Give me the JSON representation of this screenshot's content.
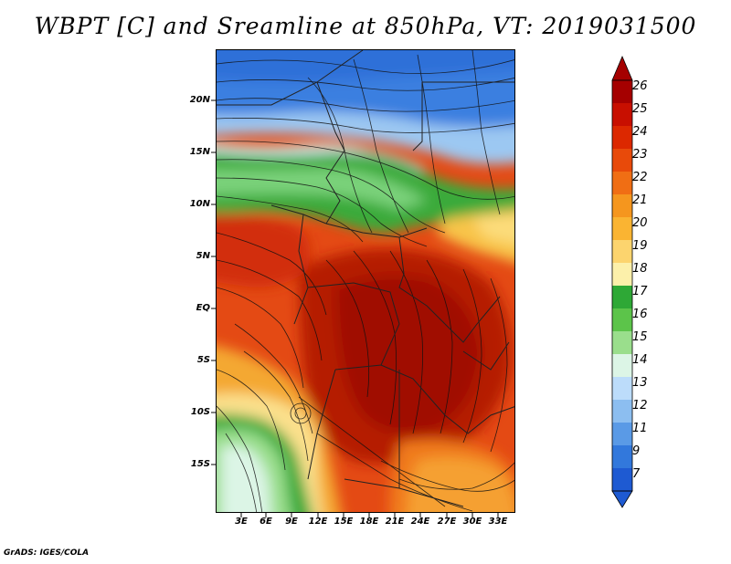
{
  "title": "WBPT [C] and Sreamline at 850hPa, VT: 2019031500",
  "credit": "GrADS: IGES/COLA",
  "map": {
    "variable": "Wet-bulb potential temperature and streamlines",
    "level": "850hPa",
    "valid_time": "2019031500",
    "lat_labels": [
      "20N",
      "15N",
      "10N",
      "5N",
      "EQ",
      "5S",
      "10S",
      "15S"
    ],
    "lat_values": [
      20,
      15,
      10,
      5,
      0,
      -5,
      -10,
      -15
    ],
    "lon_labels": [
      "3E",
      "6E",
      "9E",
      "12E",
      "15E",
      "18E",
      "21E",
      "24E",
      "27E",
      "30E",
      "33E"
    ],
    "lon_values": [
      3,
      6,
      9,
      12,
      15,
      18,
      21,
      24,
      27,
      30,
      33
    ]
  },
  "colorbar": {
    "labels": [
      "26",
      "25",
      "24",
      "23",
      "22",
      "21",
      "20",
      "19",
      "18",
      "17",
      "16",
      "15",
      "14",
      "13",
      "12",
      "11",
      "9",
      "7"
    ],
    "colors": [
      "#a50000",
      "#c80f00",
      "#dc2800",
      "#e84a0a",
      "#f06e14",
      "#f5961e",
      "#fab432",
      "#fcd46e",
      "#fcf0aa",
      "#2ea836",
      "#5cc44a",
      "#9ade8c",
      "#dcf5e6",
      "#bcdcfa",
      "#8cbef0",
      "#5a9ae6",
      "#3278dc",
      "#1e5ad2"
    ]
  }
}
